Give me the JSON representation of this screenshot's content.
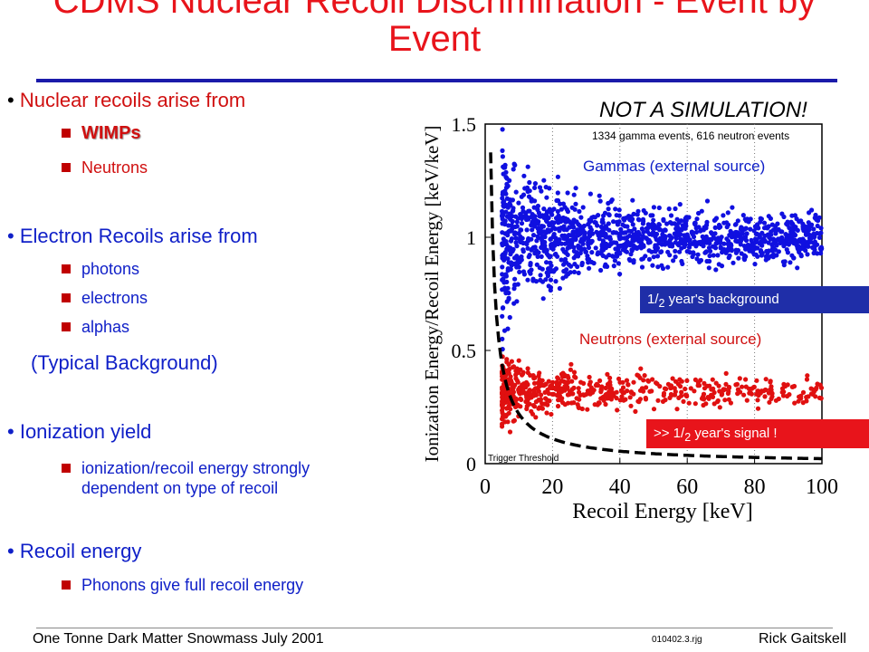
{
  "title": {
    "line1": "CDMS Nuclear Recoil Discrimination - Event by",
    "line2": "Event"
  },
  "bullets": {
    "nuclear": {
      "part1": "Nuclear recoils",
      "part2": " arise from",
      "subs": [
        "WIMPs",
        "Neutrons"
      ]
    },
    "electron": {
      "part1": "Electron Recoils",
      "part2": " arise from",
      "subs": [
        "photons",
        "electrons",
        "alphas"
      ]
    },
    "typical": {
      "open": "(",
      "word1": "Typical",
      "word2": " Background",
      "close": ")"
    },
    "ionization": {
      "label": "Ionization yield",
      "subs": [
        "ionization/recoil energy strongly dependent on type of recoil"
      ]
    },
    "recoil": {
      "label": "Recoil energy",
      "subs": [
        "Phonons give full recoil energy"
      ]
    }
  },
  "footer": {
    "left": "One Tonne Dark Matter Snowmass July 2001",
    "center": "010402.3.rjg",
    "right": "Rick Gaitskell"
  },
  "chart_data": {
    "type": "scatter",
    "xlabel": "Recoil Energy [keV]",
    "ylabel": "Ionization Energy/Recoil Energy [keV/keV]",
    "xlim": [
      0,
      100
    ],
    "ylim": [
      0,
      1.5
    ],
    "x_ticks": [
      "0",
      "20",
      "40",
      "60",
      "80",
      "100"
    ],
    "y_ticks": [
      "0",
      "0.5",
      "1",
      "1.5"
    ],
    "grid": "vertical dotted at x=20,40,60,80",
    "headline": "NOT A SIMULATION!",
    "counts_note": "1334 gamma events, 616 neutron events",
    "series": [
      {
        "name": "Gammas (external source)",
        "color": "#1010e0",
        "events": 1334,
        "yield_center": 1.0,
        "x_range": [
          5,
          100
        ]
      },
      {
        "name": "Neutrons (external source)",
        "color": "#e01010",
        "events": 616,
        "yield_center": 0.32,
        "x_range": [
          5,
          100
        ]
      }
    ],
    "threshold_label": "Trigger Threshold",
    "callouts": {
      "bg": {
        "prefix": "1",
        "sub": "2",
        "text": " year's background"
      },
      "sig": {
        "prefix": ">> 1",
        "sub": "2",
        "text": " year's signal !"
      }
    }
  },
  "colors": {
    "title": "#e8141b",
    "rule": "#1a1aaa",
    "bullet_square": "#c00000",
    "blue": "#1020c8",
    "red": "#d01010"
  }
}
